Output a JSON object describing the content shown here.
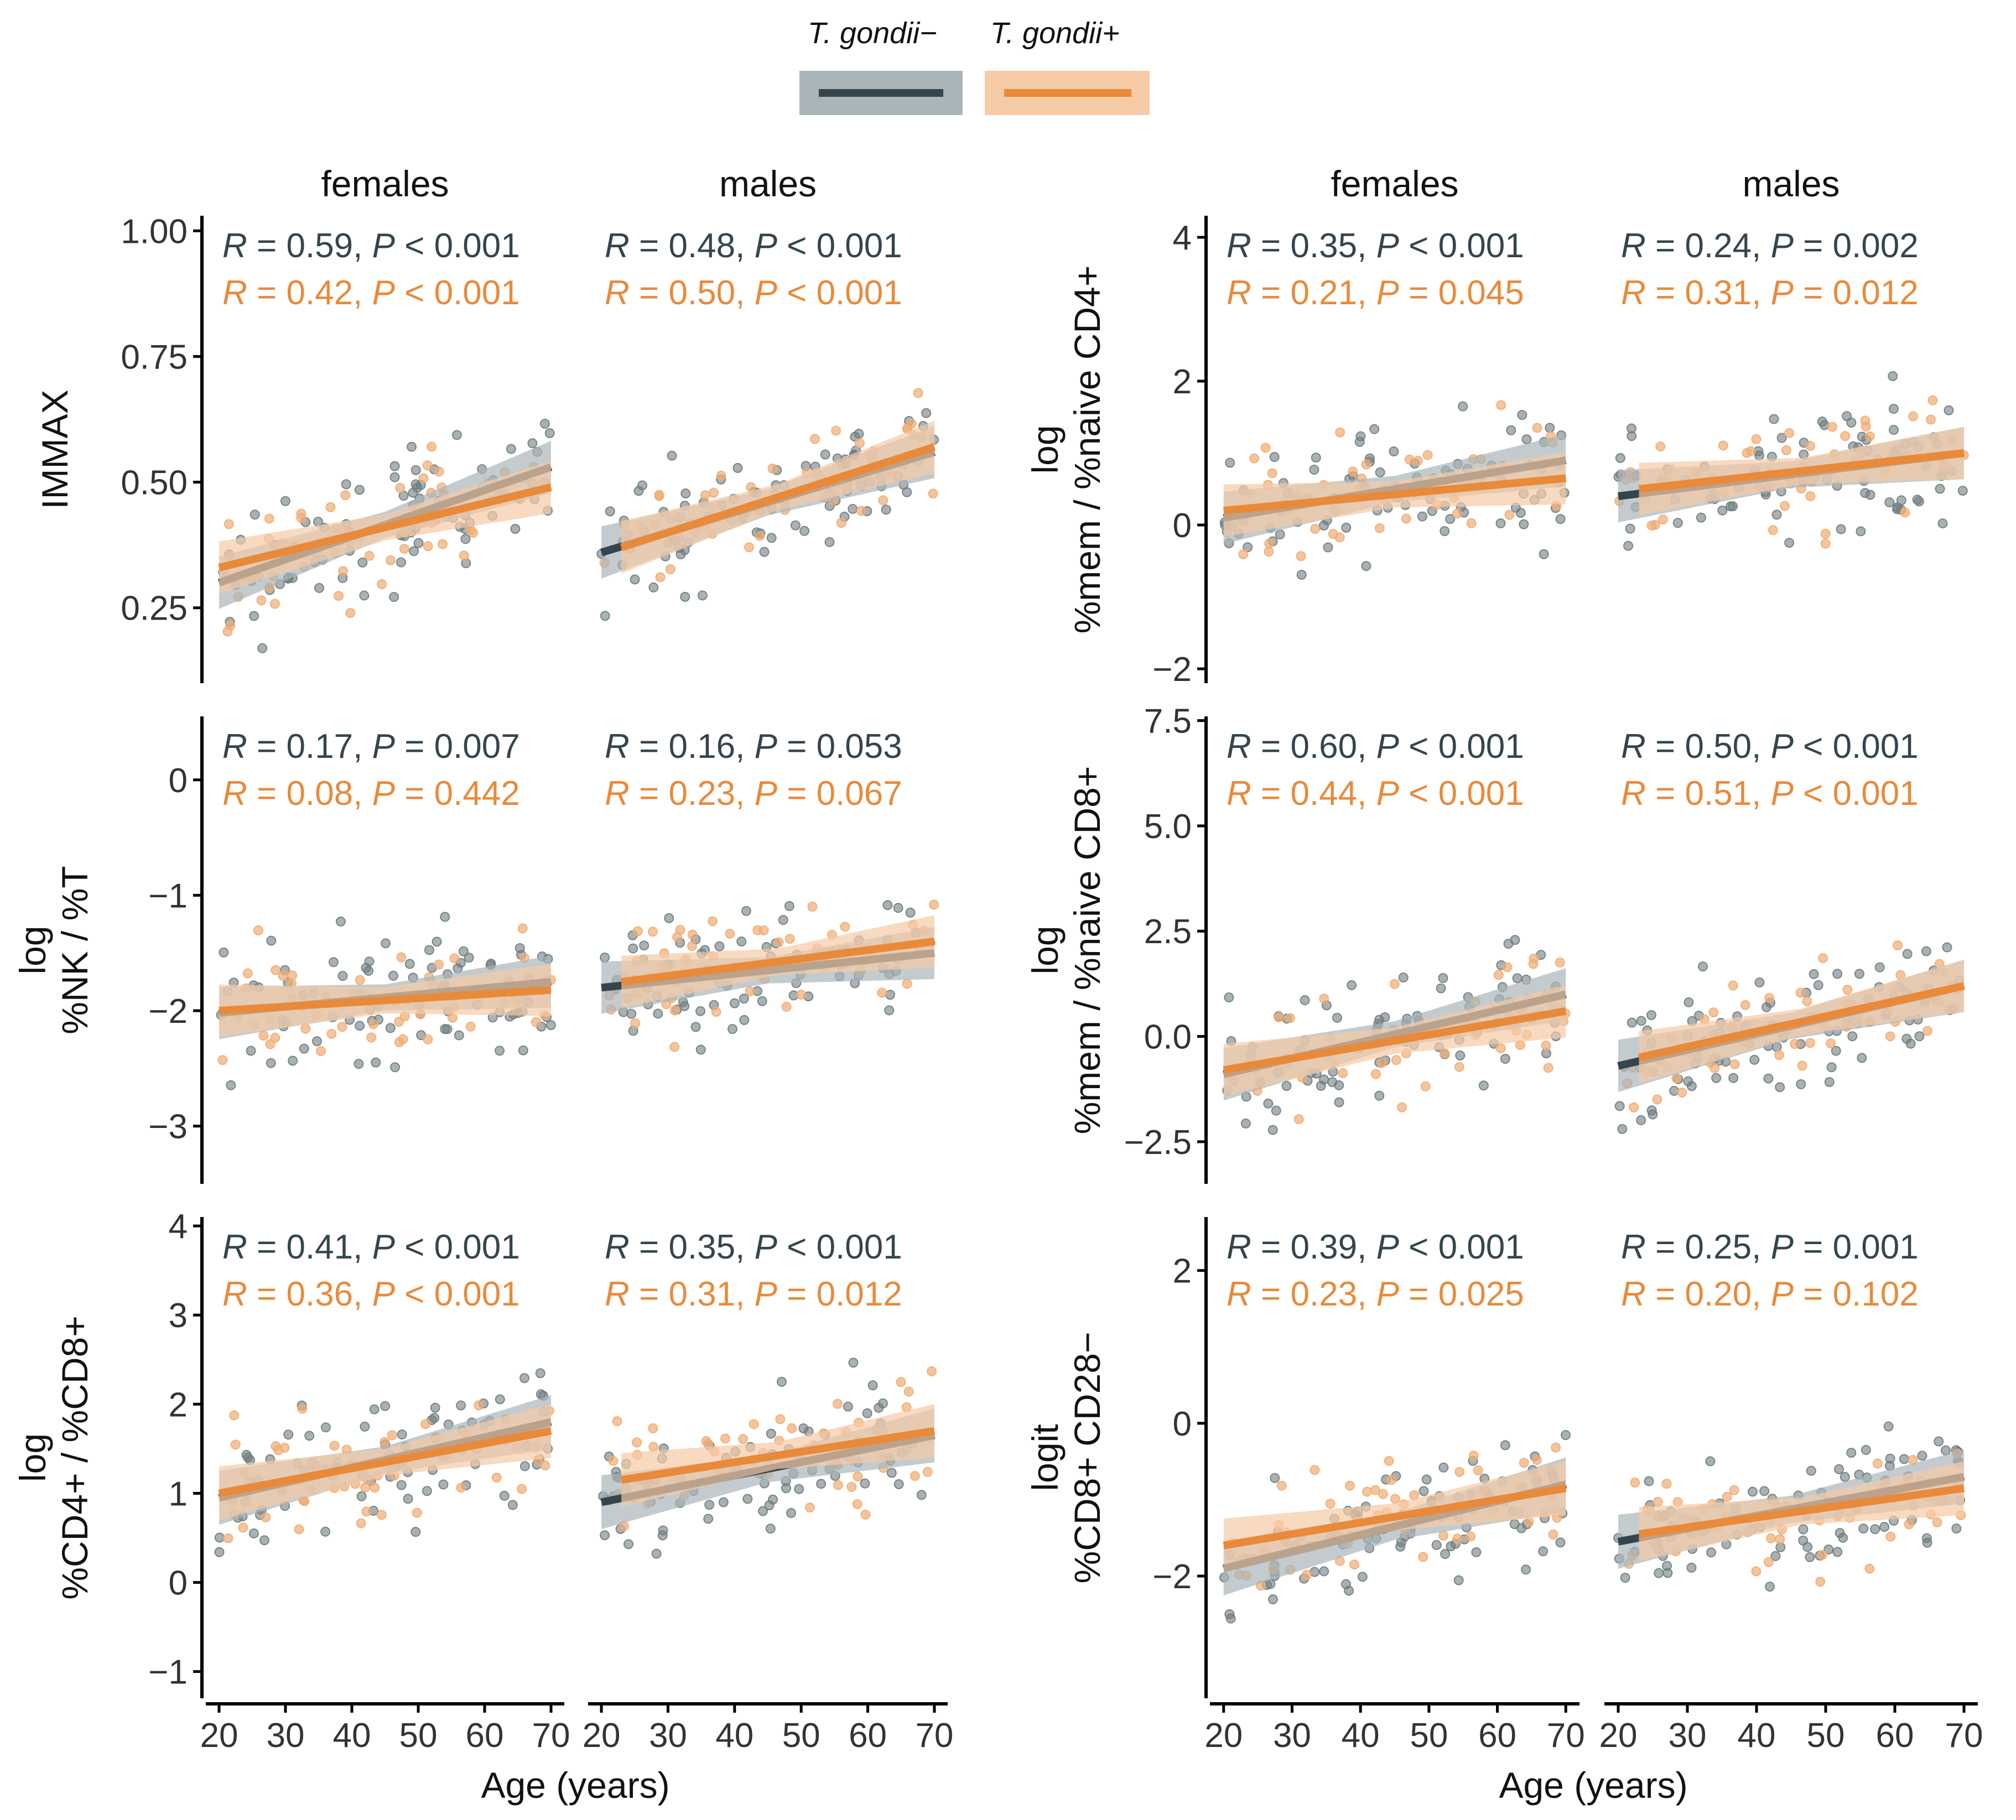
{
  "legend": {
    "negative_label": "T. gondii−",
    "positive_label": "T. gondii+"
  },
  "colors": {
    "negative": "#34454d",
    "negative_band": "#a9b5b9",
    "positive": "#e88a3a",
    "positive_band": "#f5cba6",
    "neg_point": "#6f7d80",
    "pos_point": "#efad74"
  },
  "x_axis_label": "Age (years)",
  "chart_data": [
    {
      "type": "scatter",
      "id": "immax",
      "ylabel_lines": [
        "IMMAX"
      ],
      "xlabel": "Age (years)",
      "xlim": [
        18,
        72
      ],
      "ylim": [
        0.1,
        1.03
      ],
      "yticks": [
        0.25,
        0.5,
        0.75,
        1.0
      ],
      "yticklabels": [
        "0.25",
        "0.50",
        "0.75",
        "1.00"
      ],
      "xticks": [
        20,
        30,
        40,
        50,
        60,
        70
      ],
      "facets": [
        {
          "label": "females",
          "fit_neg": [
            [
              20,
              0.3
            ],
            [
              70,
              0.53
            ]
          ],
          "fit_pos": [
            [
              20,
              0.33
            ],
            [
              70,
              0.49
            ]
          ],
          "stat_neg": {
            "R": "0.59",
            "P_op": "<",
            "P": "0.001"
          },
          "stat_pos": {
            "R": "0.42",
            "P_op": "<",
            "P": "0.001"
          }
        },
        {
          "label": "males",
          "fit_neg": [
            [
              20,
              0.36
            ],
            [
              70,
              0.56
            ]
          ],
          "fit_pos": [
            [
              23,
              0.37
            ],
            [
              70,
              0.57
            ]
          ],
          "stat_neg": {
            "R": "0.48",
            "P_op": "<",
            "P": "0.001"
          },
          "stat_pos": {
            "R": "0.50",
            "P_op": "<",
            "P": "0.001"
          }
        }
      ]
    },
    {
      "type": "scatter",
      "id": "mem_naive_cd4",
      "ylabel_lines": [
        "log",
        "%mem / %naive CD4+"
      ],
      "xlabel": "Age (years)",
      "xlim": [
        18,
        72
      ],
      "ylim": [
        -2.2,
        4.3
      ],
      "yticks": [
        -2,
        0,
        2,
        4
      ],
      "yticklabels": [
        "−2",
        "0",
        "2",
        "4"
      ],
      "xticks": [
        20,
        30,
        40,
        50,
        60,
        70
      ],
      "facets": [
        {
          "label": "females",
          "fit_neg": [
            [
              20,
              0.1
            ],
            [
              70,
              0.9
            ]
          ],
          "fit_pos": [
            [
              20,
              0.2
            ],
            [
              70,
              0.65
            ]
          ],
          "stat_neg": {
            "R": "0.35",
            "P_op": "<",
            "P": "0.001"
          },
          "stat_pos": {
            "R": "0.21",
            "P_op": "=",
            "P": "0.045"
          }
        },
        {
          "label": "males",
          "fit_neg": [
            [
              20,
              0.4
            ],
            [
              70,
              1.0
            ]
          ],
          "fit_pos": [
            [
              23,
              0.5
            ],
            [
              70,
              1.0
            ]
          ],
          "stat_neg": {
            "R": "0.24",
            "P_op": "=",
            "P": "0.002"
          },
          "stat_pos": {
            "R": "0.31",
            "P_op": "=",
            "P": "0.012"
          }
        }
      ]
    },
    {
      "type": "scatter",
      "id": "nk_t",
      "ylabel_lines": [
        "log",
        "%NK / %T"
      ],
      "xlabel": "Age (years)",
      "xlim": [
        18,
        72
      ],
      "ylim": [
        -3.5,
        0.55
      ],
      "yticks": [
        -3,
        -2,
        -1,
        0
      ],
      "yticklabels": [
        "−3",
        "−2",
        "−1",
        "0"
      ],
      "xticks": [
        20,
        30,
        40,
        50,
        60,
        70
      ],
      "facets": [
        {
          "label": "females",
          "fit_neg": [
            [
              20,
              -2.02
            ],
            [
              70,
              -1.75
            ]
          ],
          "fit_pos": [
            [
              20,
              -2.0
            ],
            [
              70,
              -1.82
            ]
          ],
          "stat_neg": {
            "R": "0.17",
            "P_op": "=",
            "P": "0.007"
          },
          "stat_pos": {
            "R": "0.08",
            "P_op": "=",
            "P": "0.442"
          }
        },
        {
          "label": "males",
          "fit_neg": [
            [
              20,
              -1.8
            ],
            [
              70,
              -1.5
            ]
          ],
          "fit_pos": [
            [
              23,
              -1.75
            ],
            [
              70,
              -1.4
            ]
          ],
          "stat_neg": {
            "R": "0.16",
            "P_op": "=",
            "P": "0.053"
          },
          "stat_pos": {
            "R": "0.23",
            "P_op": "=",
            "P": "0.067"
          }
        }
      ]
    },
    {
      "type": "scatter",
      "id": "mem_naive_cd8",
      "ylabel_lines": [
        "log",
        "%mem / %naive CD8+"
      ],
      "xlabel": "Age (years)",
      "xlim": [
        18,
        72
      ],
      "ylim": [
        -3.5,
        7.6
      ],
      "yticks": [
        -2.5,
        0,
        2.5,
        5,
        7.5
      ],
      "yticklabels": [
        "−2.5",
        "0.0",
        "2.5",
        "5.0",
        "7.5"
      ],
      "xticks": [
        20,
        30,
        40,
        50,
        60,
        70
      ],
      "facets": [
        {
          "label": "females",
          "fit_neg": [
            [
              20,
              -0.9
            ],
            [
              70,
              1.0
            ]
          ],
          "fit_pos": [
            [
              20,
              -0.8
            ],
            [
              70,
              0.6
            ]
          ],
          "stat_neg": {
            "R": "0.60",
            "P_op": "<",
            "P": "0.001"
          },
          "stat_pos": {
            "R": "0.44",
            "P_op": "<",
            "P": "0.001"
          }
        },
        {
          "label": "males",
          "fit_neg": [
            [
              20,
              -0.7
            ],
            [
              70,
              1.2
            ]
          ],
          "fit_pos": [
            [
              23,
              -0.5
            ],
            [
              70,
              1.2
            ]
          ],
          "stat_neg": {
            "R": "0.50",
            "P_op": "<",
            "P": "0.001"
          },
          "stat_pos": {
            "R": "0.51",
            "P_op": "<",
            "P": "0.001"
          }
        }
      ]
    },
    {
      "type": "scatter",
      "id": "cd4_cd8",
      "ylabel_lines": [
        "log",
        "%CD4+ / %CD8+"
      ],
      "xlabel": "Age (years)",
      "xlim": [
        18,
        72
      ],
      "ylim": [
        -1.3,
        4.1
      ],
      "yticks": [
        -1,
        0,
        1,
        2,
        3,
        4
      ],
      "yticklabels": [
        "−1",
        "0",
        "1",
        "2",
        "3",
        "4"
      ],
      "xticks": [
        20,
        30,
        40,
        50,
        60,
        70
      ],
      "facets": [
        {
          "label": "females",
          "fit_neg": [
            [
              20,
              0.95
            ],
            [
              70,
              1.8
            ]
          ],
          "fit_pos": [
            [
              20,
              1.0
            ],
            [
              70,
              1.7
            ]
          ],
          "stat_neg": {
            "R": "0.41",
            "P_op": "<",
            "P": "0.001"
          },
          "stat_pos": {
            "R": "0.36",
            "P_op": "<",
            "P": "0.001"
          }
        },
        {
          "label": "males",
          "fit_neg": [
            [
              20,
              0.9
            ],
            [
              70,
              1.65
            ]
          ],
          "fit_pos": [
            [
              23,
              1.15
            ],
            [
              70,
              1.7
            ]
          ],
          "stat_neg": {
            "R": "0.35",
            "P_op": "<",
            "P": "0.001"
          },
          "stat_pos": {
            "R": "0.31",
            "P_op": "=",
            "P": "0.012"
          }
        }
      ]
    },
    {
      "type": "scatter",
      "id": "cd8_cd28",
      "ylabel_lines": [
        "logit",
        "%CD8+ CD28−"
      ],
      "xlabel": "Age (years)",
      "xlim": [
        18,
        72
      ],
      "ylim": [
        -3.6,
        2.7
      ],
      "yticks": [
        -2,
        0,
        2
      ],
      "yticklabels": [
        "−2",
        "0",
        "2"
      ],
      "xticks": [
        20,
        30,
        40,
        50,
        60,
        70
      ],
      "facets": [
        {
          "label": "females",
          "fit_neg": [
            [
              20,
              -1.9
            ],
            [
              70,
              -0.8
            ]
          ],
          "fit_pos": [
            [
              20,
              -1.6
            ],
            [
              70,
              -0.85
            ]
          ],
          "stat_neg": {
            "R": "0.39",
            "P_op": "<",
            "P": "0.001"
          },
          "stat_pos": {
            "R": "0.23",
            "P_op": "=",
            "P": "0.025"
          }
        },
        {
          "label": "males",
          "fit_neg": [
            [
              20,
              -1.55
            ],
            [
              70,
              -0.7
            ]
          ],
          "fit_pos": [
            [
              23,
              -1.45
            ],
            [
              70,
              -0.85
            ]
          ],
          "stat_neg": {
            "R": "0.25",
            "P_op": "=",
            "P": "0.001"
          },
          "stat_pos": {
            "R": "0.20",
            "P_op": "=",
            "P": "0.102"
          }
        }
      ]
    }
  ]
}
